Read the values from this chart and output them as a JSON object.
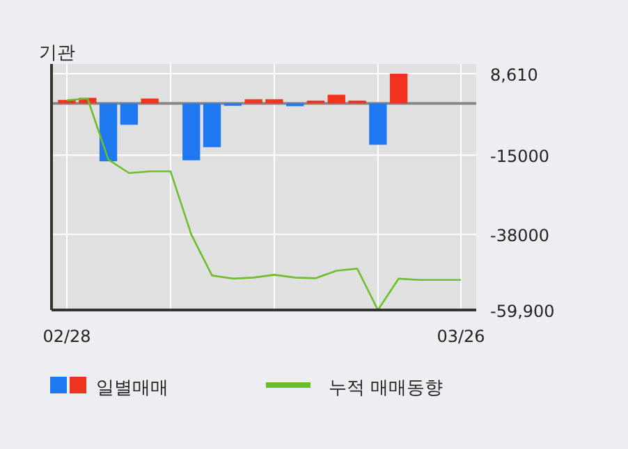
{
  "chart_data": {
    "type": "bar",
    "title": "기관",
    "categories": [
      "02/28",
      null,
      null,
      null,
      null,
      null,
      null,
      null,
      null,
      null,
      null,
      null,
      null,
      null,
      null,
      null,
      null,
      null,
      null,
      "03/26"
    ],
    "series": [
      {
        "name": "일별매매",
        "colors": [
          "#f0321e",
          "#f0321e",
          "#1e78f0",
          "#1e78f0",
          "#f0321e",
          "#f0321e",
          "#1e78f0",
          "#1e78f0",
          "#1e78f0",
          "#f0321e",
          "#f0321e",
          "#1e78f0",
          "#f0321e",
          "#f0321e",
          "#f0321e",
          "#1e78f0",
          "#f0321e",
          "#f0321e",
          "#f0321e",
          "#f0321e"
        ],
        "values": [
          1000,
          1600,
          -16800,
          -6200,
          1400,
          0,
          -16500,
          -12700,
          -700,
          1200,
          1200,
          -800,
          800,
          2500,
          800,
          -12000,
          8610,
          0,
          0,
          0
        ]
      },
      {
        "name": "누적 매매동향",
        "type": "line",
        "color": "#6cbf2a",
        "values": [
          900,
          1400,
          -16300,
          -20200,
          -19700,
          -19700,
          -38000,
          -49900,
          -50800,
          -50500,
          -49700,
          -50500,
          -50700,
          -48500,
          -47900,
          -59900,
          -50800,
          -51200,
          -51200,
          -51200
        ]
      }
    ],
    "ylim": [
      -59900,
      8610
    ],
    "yticks": [
      {
        "value": 8610,
        "label": "8,610"
      },
      -15000,
      -38000,
      {
        "value": -59900,
        "label": "-59,900"
      }
    ],
    "ref_lines": [
      {
        "axis": "y",
        "value": 0,
        "color": "#888888"
      }
    ],
    "grid": true,
    "legend": "bottom"
  }
}
